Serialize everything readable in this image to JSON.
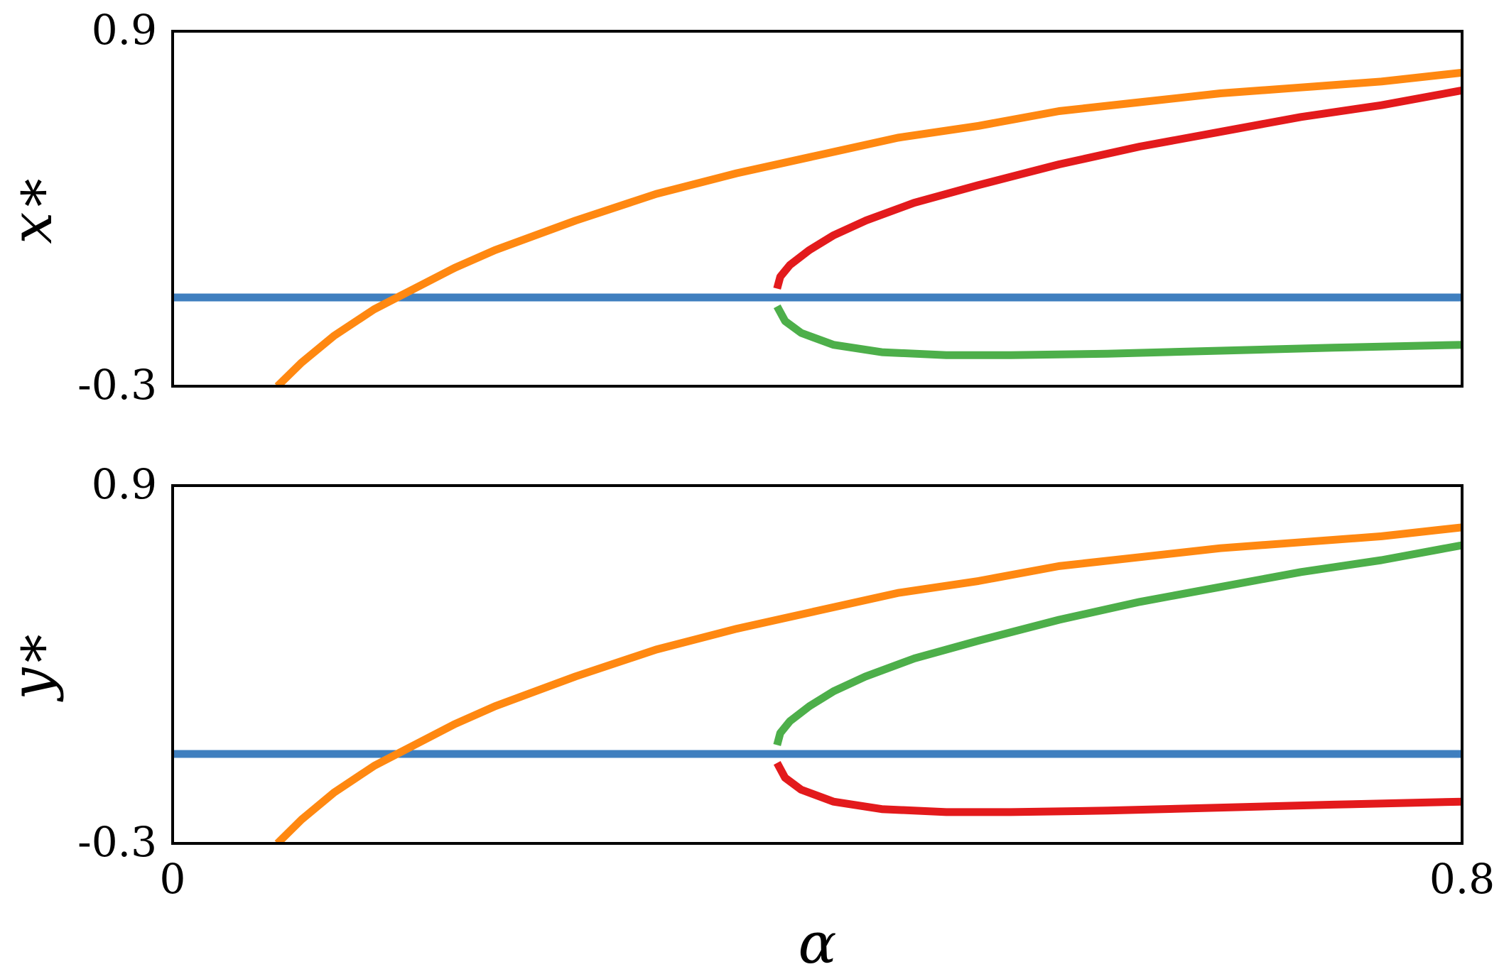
{
  "chart_data": [
    {
      "type": "line",
      "ylabel": "x∗",
      "xlabel": "",
      "xlim": [
        0,
        0.8
      ],
      "ylim": [
        -0.3,
        0.9
      ],
      "yticks": [
        "0.9",
        "-0.3"
      ],
      "xticks": [],
      "grid": false,
      "series": [
        {
          "color": "#3f7fbf",
          "x": [
            0,
            0.8
          ],
          "y": [
            0.0,
            0.0
          ]
        },
        {
          "color": "#ff8811",
          "x": [
            0.065,
            0.08,
            0.1,
            0.125,
            0.15,
            0.175,
            0.2,
            0.25,
            0.3,
            0.35,
            0.4,
            0.45,
            0.5,
            0.55,
            0.6,
            0.65,
            0.7,
            0.75,
            0.8
          ],
          "y": [
            -0.3,
            -0.22,
            -0.13,
            -0.04,
            0.03,
            0.1,
            0.16,
            0.26,
            0.35,
            0.42,
            0.48,
            0.54,
            0.58,
            0.63,
            0.66,
            0.69,
            0.71,
            0.73,
            0.76
          ]
        },
        {
          "color": "#e31a1c",
          "x": [
            0.375,
            0.377,
            0.383,
            0.395,
            0.41,
            0.43,
            0.46,
            0.5,
            0.55,
            0.6,
            0.65,
            0.7,
            0.75,
            0.8
          ],
          "y": [
            0.03,
            0.07,
            0.11,
            0.16,
            0.21,
            0.26,
            0.32,
            0.38,
            0.45,
            0.51,
            0.56,
            0.61,
            0.65,
            0.7
          ]
        },
        {
          "color": "#4daf4a",
          "x": [
            0.375,
            0.38,
            0.39,
            0.41,
            0.44,
            0.48,
            0.52,
            0.58,
            0.65,
            0.72,
            0.8
          ],
          "y": [
            -0.03,
            -0.08,
            -0.12,
            -0.16,
            -0.185,
            -0.195,
            -0.195,
            -0.19,
            -0.18,
            -0.17,
            -0.16
          ]
        }
      ]
    },
    {
      "type": "line",
      "ylabel": "y∗",
      "xlabel": "α",
      "xlim": [
        0,
        0.8
      ],
      "ylim": [
        -0.3,
        0.9
      ],
      "yticks": [
        "0.9",
        "-0.3"
      ],
      "xticks": [
        "0",
        "0.8"
      ],
      "grid": false,
      "series": [
        {
          "color": "#3f7fbf",
          "x": [
            0,
            0.8
          ],
          "y": [
            0.0,
            0.0
          ]
        },
        {
          "color": "#ff8811",
          "x": [
            0.065,
            0.08,
            0.1,
            0.125,
            0.15,
            0.175,
            0.2,
            0.25,
            0.3,
            0.35,
            0.4,
            0.45,
            0.5,
            0.55,
            0.6,
            0.65,
            0.7,
            0.75,
            0.8
          ],
          "y": [
            -0.3,
            -0.22,
            -0.13,
            -0.04,
            0.03,
            0.1,
            0.16,
            0.26,
            0.35,
            0.42,
            0.48,
            0.54,
            0.58,
            0.63,
            0.66,
            0.69,
            0.71,
            0.73,
            0.76
          ]
        },
        {
          "color": "#4daf4a",
          "x": [
            0.375,
            0.377,
            0.383,
            0.395,
            0.41,
            0.43,
            0.46,
            0.5,
            0.55,
            0.6,
            0.65,
            0.7,
            0.75,
            0.8
          ],
          "y": [
            0.03,
            0.07,
            0.11,
            0.16,
            0.21,
            0.26,
            0.32,
            0.38,
            0.45,
            0.51,
            0.56,
            0.61,
            0.65,
            0.7
          ]
        },
        {
          "color": "#e31a1c",
          "x": [
            0.375,
            0.38,
            0.39,
            0.41,
            0.44,
            0.48,
            0.52,
            0.58,
            0.65,
            0.72,
            0.8
          ],
          "y": [
            -0.03,
            -0.08,
            -0.12,
            -0.16,
            -0.185,
            -0.195,
            -0.195,
            -0.19,
            -0.18,
            -0.17,
            -0.16
          ]
        }
      ]
    }
  ]
}
